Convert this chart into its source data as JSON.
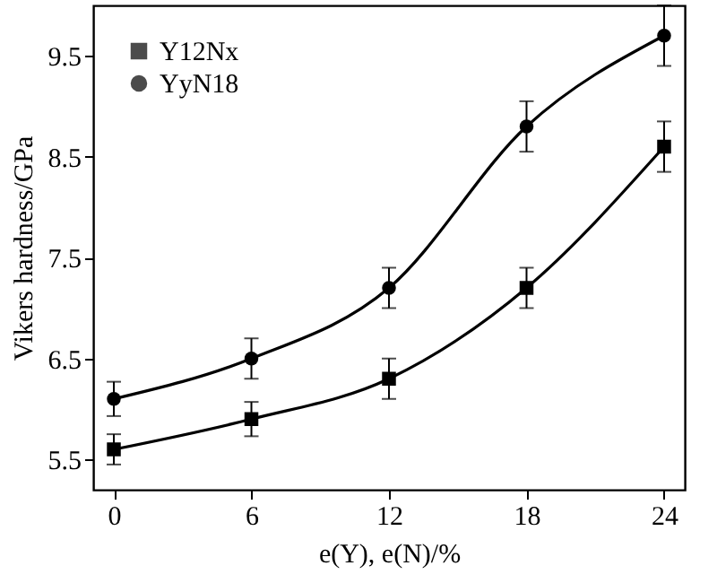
{
  "chart_data": {
    "type": "line",
    "xlabel": "e(Y), e(N)/%",
    "ylabel": "Vikers hardness/GPa",
    "x": [
      0,
      6,
      12,
      18,
      24
    ],
    "xlim": [
      -0.9,
      24.9
    ],
    "xticks": [
      0,
      6,
      12,
      18,
      24
    ],
    "ylim": [
      5.2,
      10
    ],
    "yticks": [
      5.5,
      6.5,
      7.5,
      8.5,
      9.5
    ],
    "legend": "top left",
    "grid": false,
    "series": [
      {
        "name": "Y12Nx",
        "color": "#000000",
        "marker": "square",
        "values": [
          5.6,
          5.9,
          6.3,
          7.2,
          8.6
        ],
        "errors": [
          0.15,
          0.17,
          0.2,
          0.2,
          0.25
        ]
      },
      {
        "name": "YyN18",
        "color": "#000000",
        "marker": "circle",
        "values": [
          6.1,
          6.5,
          7.2,
          8.8,
          9.7
        ],
        "errors": [
          0.17,
          0.2,
          0.2,
          0.25,
          0.3
        ]
      }
    ]
  }
}
